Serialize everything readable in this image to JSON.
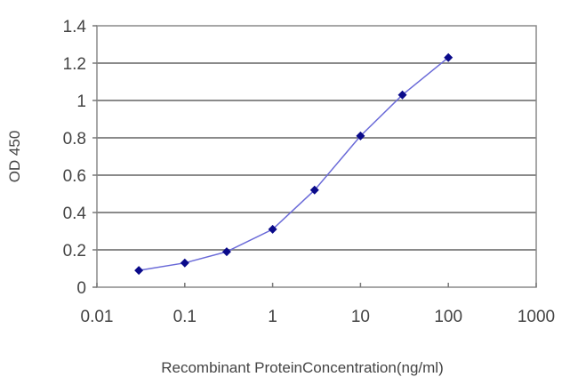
{
  "chart_data": {
    "type": "line",
    "title": "",
    "xlabel": "Recombinant ProteinConcentration(ng/ml)",
    "ylabel": "OD 450",
    "xscale": "log",
    "xlim": [
      0.01,
      1000
    ],
    "ylim": [
      0,
      1.4
    ],
    "x_ticks": [
      "0.01",
      "0.1",
      "1",
      "10",
      "100",
      "1000"
    ],
    "y_ticks": [
      "0",
      "0.2",
      "0.4",
      "0.6",
      "0.8",
      "1",
      "1.2",
      "1.4"
    ],
    "grid": "horizontal",
    "legend": "none",
    "series": [
      {
        "name": "OD 450",
        "x": [
          0.03,
          0.1,
          0.3,
          1,
          3,
          10,
          30,
          100
        ],
        "values": [
          0.09,
          0.13,
          0.19,
          0.31,
          0.52,
          0.81,
          1.03,
          1.23
        ]
      }
    ]
  },
  "colors": {
    "line": "#6a6ad8",
    "marker": "#0a0a8a",
    "grid": "#8a8a8a",
    "axis": "#777777"
  }
}
